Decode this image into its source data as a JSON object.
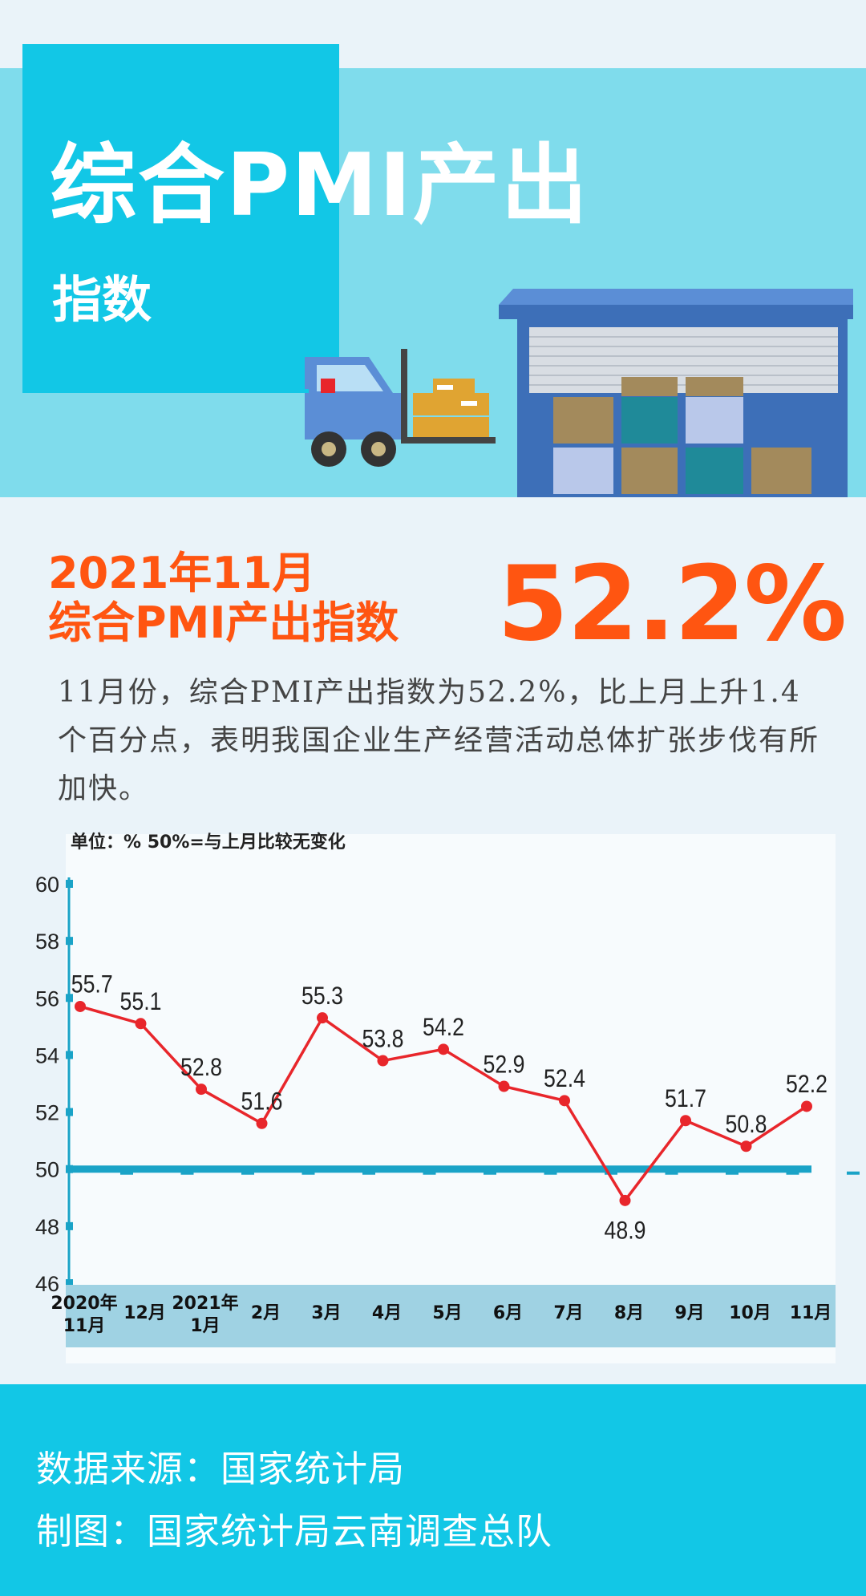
{
  "header": {
    "title_line1": "综合PMI产出",
    "title_line2": "指数"
  },
  "highlight": {
    "period_line1": "2021年11月",
    "period_line2": "综合PMI产出指数",
    "value": "52.2%"
  },
  "description": "11月份，综合PMI产出指数为52.2%，比上月上升1.4个百分点，表明我国企业生产经营活动总体扩张步伐有所加快。",
  "chart_data": {
    "type": "line",
    "unit_note": "单位：%  50%=与上月比较无变化",
    "categories": [
      [
        "2020年",
        "11月"
      ],
      [
        "12月"
      ],
      [
        "2021年",
        "1月"
      ],
      [
        "2月"
      ],
      [
        "3月"
      ],
      [
        "4月"
      ],
      [
        "5月"
      ],
      [
        "6月"
      ],
      [
        "7月"
      ],
      [
        "8月"
      ],
      [
        "9月"
      ],
      [
        "10月"
      ],
      [
        "11月"
      ]
    ],
    "values": [
      55.7,
      55.1,
      52.8,
      51.6,
      55.3,
      53.8,
      54.2,
      52.9,
      52.4,
      48.9,
      51.7,
      50.8,
      52.2
    ],
    "data_labels": [
      "55.7",
      "55.1",
      "52.8",
      "51.6",
      "55.3",
      "53.8",
      "54.2",
      "52.9",
      "52.4",
      "48.9",
      "51.7",
      "50.8",
      "52.2"
    ],
    "reference_line": 50,
    "ylim": [
      46,
      60
    ],
    "yticks": [
      46,
      48,
      50,
      52,
      54,
      56,
      58,
      60
    ],
    "ytick_labels": [
      "46",
      "48",
      "50",
      "52",
      "54",
      "56",
      "58",
      "60"
    ],
    "grid": false,
    "colors": {
      "line": "#e8262b",
      "marker": "#e8262b",
      "reference": "#1aa3c7",
      "axis_band": "#9fd2e3"
    }
  },
  "footer": {
    "source": "数据来源：国家统计局",
    "credit": "制图：国家统计局云南调查总队"
  },
  "colors": {
    "accent": "#ff5511",
    "brand_cyan": "#12c7e6",
    "light_cyan": "#7fdcec",
    "background": "#eaf3f9"
  }
}
